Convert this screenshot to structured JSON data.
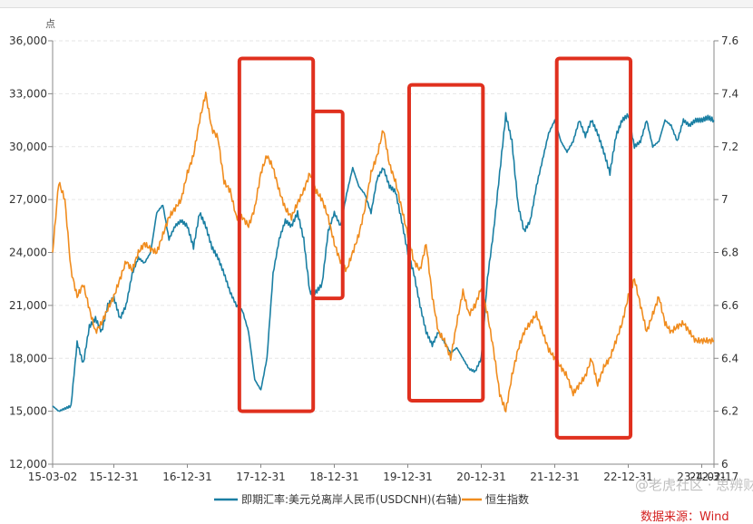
{
  "chart_data": {
    "type": "line",
    "y_unit_label": "点",
    "x_ticks": [
      "15-03-02",
      "15-12-31",
      "16-12-31",
      "17-12-31",
      "18-12-31",
      "19-12-31",
      "20-12-31",
      "21-12-31",
      "22-12-31",
      "23-12-31",
      "24-02-17"
    ],
    "x_tick_index": [
      0,
      10,
      22,
      34,
      46,
      58,
      70,
      82,
      94,
      106,
      108
    ],
    "left_axis": {
      "ylim": [
        12000,
        36000
      ],
      "ticks": [
        12000,
        15000,
        18000,
        21000,
        24000,
        27000,
        30000,
        33000,
        36000
      ],
      "tick_labels": [
        "12,000",
        "15,000",
        "18,000",
        "21,000",
        "24,000",
        "27,000",
        "30,000",
        "33,000",
        "36,000"
      ]
    },
    "right_axis": {
      "ylim": [
        6.0,
        7.6
      ],
      "ticks": [
        6.0,
        6.2,
        6.4,
        6.6,
        6.8,
        7.0,
        7.2,
        7.4,
        7.6
      ],
      "tick_labels": [
        "6",
        "6.2",
        "6.4",
        "6.6",
        "6.8",
        "7",
        "7.2",
        "7.4",
        "7.6"
      ]
    },
    "grid": true,
    "legend_position": "bottom",
    "series": [
      {
        "name": "即期汇率:美元兑离岸人民币(USDCNH)(右轴)",
        "axis": "right",
        "color": "#1a7fa3",
        "values": [
          6.22,
          6.2,
          6.21,
          6.22,
          6.46,
          6.38,
          6.52,
          6.55,
          6.5,
          6.6,
          6.63,
          6.55,
          6.6,
          6.72,
          6.78,
          6.76,
          6.8,
          6.95,
          6.98,
          6.85,
          6.9,
          6.92,
          6.9,
          6.82,
          6.95,
          6.9,
          6.82,
          6.78,
          6.72,
          6.65,
          6.6,
          6.58,
          6.5,
          6.32,
          6.28,
          6.4,
          6.72,
          6.85,
          6.92,
          6.9,
          6.95,
          6.85,
          6.65,
          6.65,
          6.68,
          6.88,
          6.95,
          6.9,
          7.02,
          7.12,
          7.05,
          7.02,
          6.95,
          7.08,
          7.12,
          7.05,
          7.03,
          6.92,
          6.8,
          6.72,
          6.6,
          6.5,
          6.45,
          6.5,
          6.46,
          6.42,
          6.44,
          6.4,
          6.36,
          6.35,
          6.4,
          6.7,
          6.88,
          7.1,
          7.32,
          7.22,
          6.98,
          6.88,
          6.92,
          7.05,
          7.15,
          7.25,
          7.3,
          7.22,
          7.18,
          7.22,
          7.3,
          7.24,
          7.3,
          7.25,
          7.18,
          7.1,
          7.24,
          7.3,
          7.32,
          7.2,
          7.22,
          7.3,
          7.2,
          7.22,
          7.3,
          7.28,
          7.22,
          7.3,
          7.28,
          7.3,
          7.3,
          7.31,
          7.3
        ]
      },
      {
        "name": "恒生指数",
        "axis": "left",
        "color": "#f08c1e",
        "values": [
          24000,
          28000,
          27000,
          23000,
          21500,
          22200,
          20800,
          19500,
          20000,
          20800,
          21500,
          22500,
          23500,
          23000,
          24000,
          24500,
          24200,
          24000,
          25000,
          26000,
          26500,
          27000,
          28500,
          29500,
          31500,
          33000,
          31000,
          30500,
          28000,
          27500,
          26000,
          26000,
          25500,
          26500,
          28500,
          29500,
          28800,
          27500,
          26500,
          26000,
          26800,
          27500,
          28500,
          27500,
          27000,
          26000,
          24500,
          23500,
          23000,
          24000,
          25000,
          26500,
          28500,
          29500,
          31000,
          29000,
          28000,
          26500,
          25000,
          23500,
          23000,
          24500,
          21500,
          19500,
          19000,
          18000,
          20000,
          21800,
          20500,
          21000,
          22000,
          20500,
          18500,
          16000,
          15000,
          17000,
          18500,
          19500,
          20000,
          20500,
          19500,
          18500,
          18000,
          17500,
          17000,
          16000,
          16500,
          17000,
          18000,
          16500,
          17500,
          18000,
          19000,
          20000,
          21500,
          22500,
          21000,
          19500,
          20500,
          21500,
          20000,
          19500,
          19800,
          20000,
          19500,
          19000,
          19000,
          19000,
          19000
        ]
      }
    ],
    "annotations": [
      {
        "type": "rect",
        "x_start": 17.7,
        "x_end": 18.7,
        "y_left_top": 35000,
        "y_left_bottom": 15000
      },
      {
        "type": "rect",
        "x_start": 18.7,
        "x_end": 19.1,
        "y_left_top": 32000,
        "y_left_bottom": 21400
      },
      {
        "type": "rect",
        "x_start": 20.0,
        "x_end": 21.0,
        "y_left_top": 33500,
        "y_left_bottom": 15600
      },
      {
        "type": "rect",
        "x_start": 22.0,
        "x_end": 23.0,
        "y_left_top": 35000,
        "y_left_bottom": 13500
      }
    ]
  },
  "source_text": "数据来源：Wind",
  "watermark_text": "@老虎社区 · 思辨财经"
}
